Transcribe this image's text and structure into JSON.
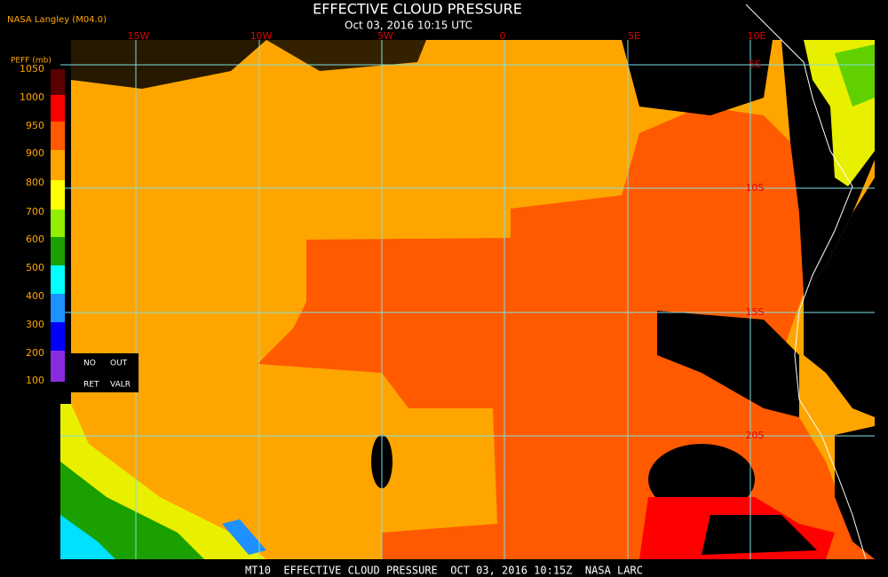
{
  "header": {
    "source": "NASA Langley (M04.0)",
    "title": "EFFECTIVE CLOUD PRESSURE",
    "subtitle": "Oct 03, 2016 10:15 UTC"
  },
  "legend": {
    "label": "PEFF (mb)",
    "ticks": [
      "1050",
      "1000",
      "950",
      "900",
      "800",
      "700",
      "600",
      "500",
      "400",
      "300",
      "200",
      "100"
    ],
    "no_data": [
      "NO",
      "OUT",
      "RET",
      "VALR"
    ]
  },
  "map": {
    "longitude_labels": [
      "15W",
      "10W",
      "5W",
      "0",
      "5E",
      "10E"
    ],
    "latitude_labels": [
      "5S",
      "10S",
      "15S",
      "20S"
    ]
  },
  "footer": "MT10  EFFECTIVE CLOUD PRESSURE  OCT 03, 2016 10:15Z  NASA LARC"
}
